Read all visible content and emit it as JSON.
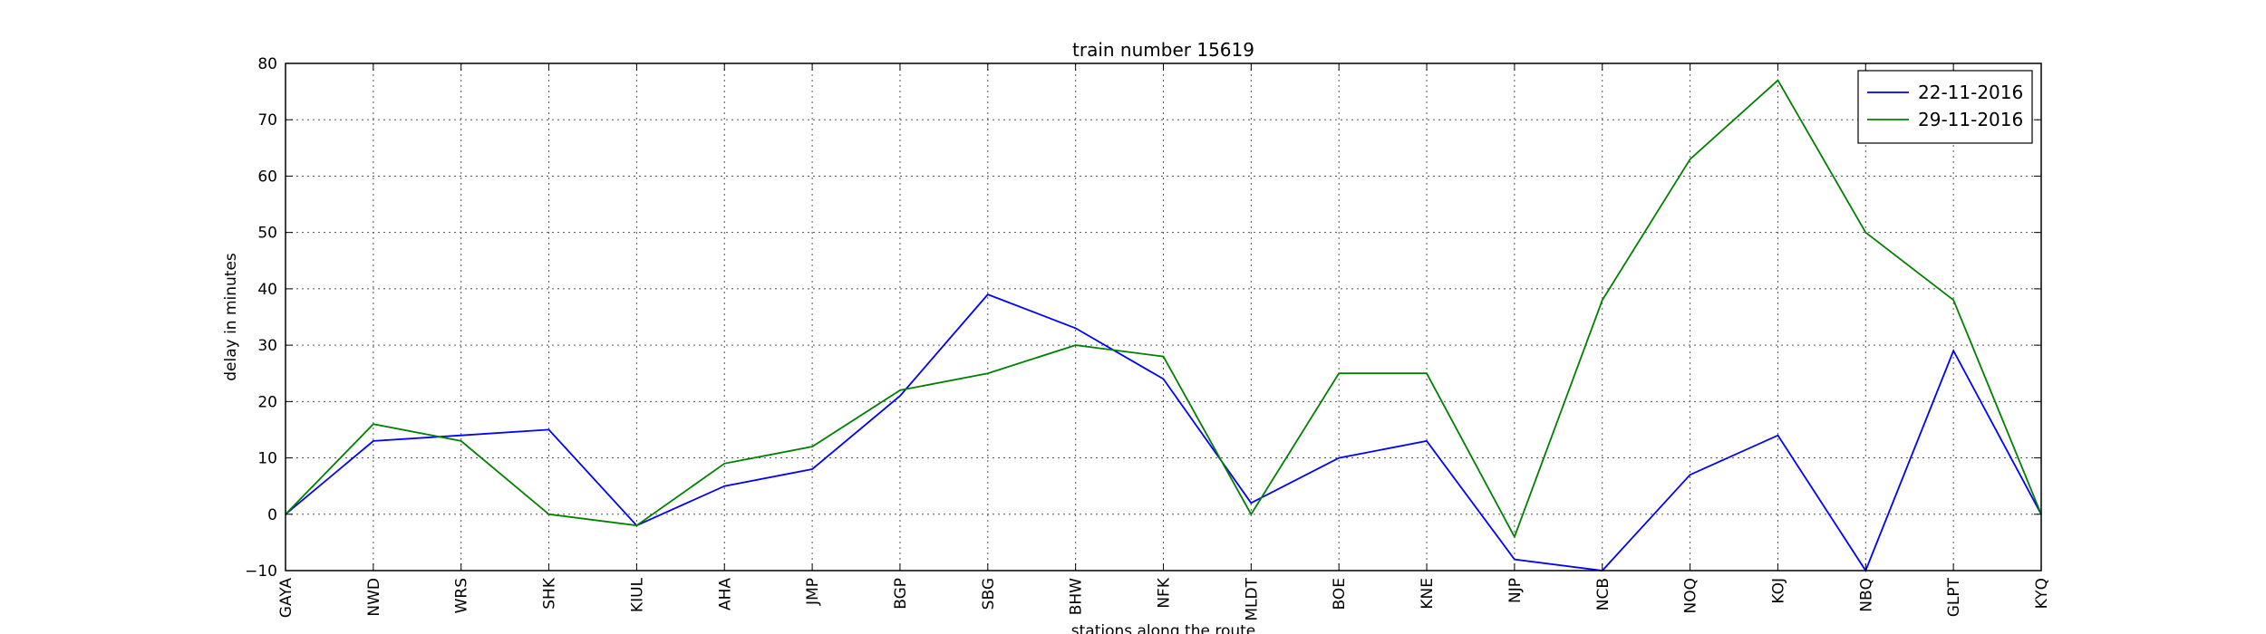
{
  "chart_data": {
    "type": "line",
    "title": "train number 15619",
    "xlabel": "stations along the route",
    "ylabel": "delay in minutes",
    "categories": [
      "GAYA",
      "NWD",
      "WRS",
      "SHK",
      "KIUL",
      "AHA",
      "JMP",
      "BGP",
      "SBG",
      "BHW",
      "NFK",
      "MLDT",
      "BOE",
      "KNE",
      "NJP",
      "NCB",
      "NOQ",
      "KOJ",
      "NBQ",
      "GLPT",
      "KYQ"
    ],
    "ylim": [
      -10,
      80
    ],
    "yticks": [
      -10,
      0,
      10,
      20,
      30,
      40,
      50,
      60,
      70,
      80
    ],
    "grid": true,
    "legend_position": "top-right",
    "series": [
      {
        "name": "22-11-2016",
        "color": "#0000ff",
        "values": [
          0,
          13,
          14,
          15,
          -2,
          5,
          8,
          21,
          39,
          33,
          24,
          2,
          10,
          13,
          -8,
          -10,
          7,
          14,
          -10,
          29,
          0
        ]
      },
      {
        "name": "29-11-2016",
        "color": "#008000",
        "values": [
          0,
          16,
          13,
          0,
          -2,
          9,
          12,
          22,
          25,
          30,
          28,
          0,
          25,
          25,
          -4,
          38,
          63,
          77,
          50,
          38,
          0
        ]
      }
    ]
  }
}
